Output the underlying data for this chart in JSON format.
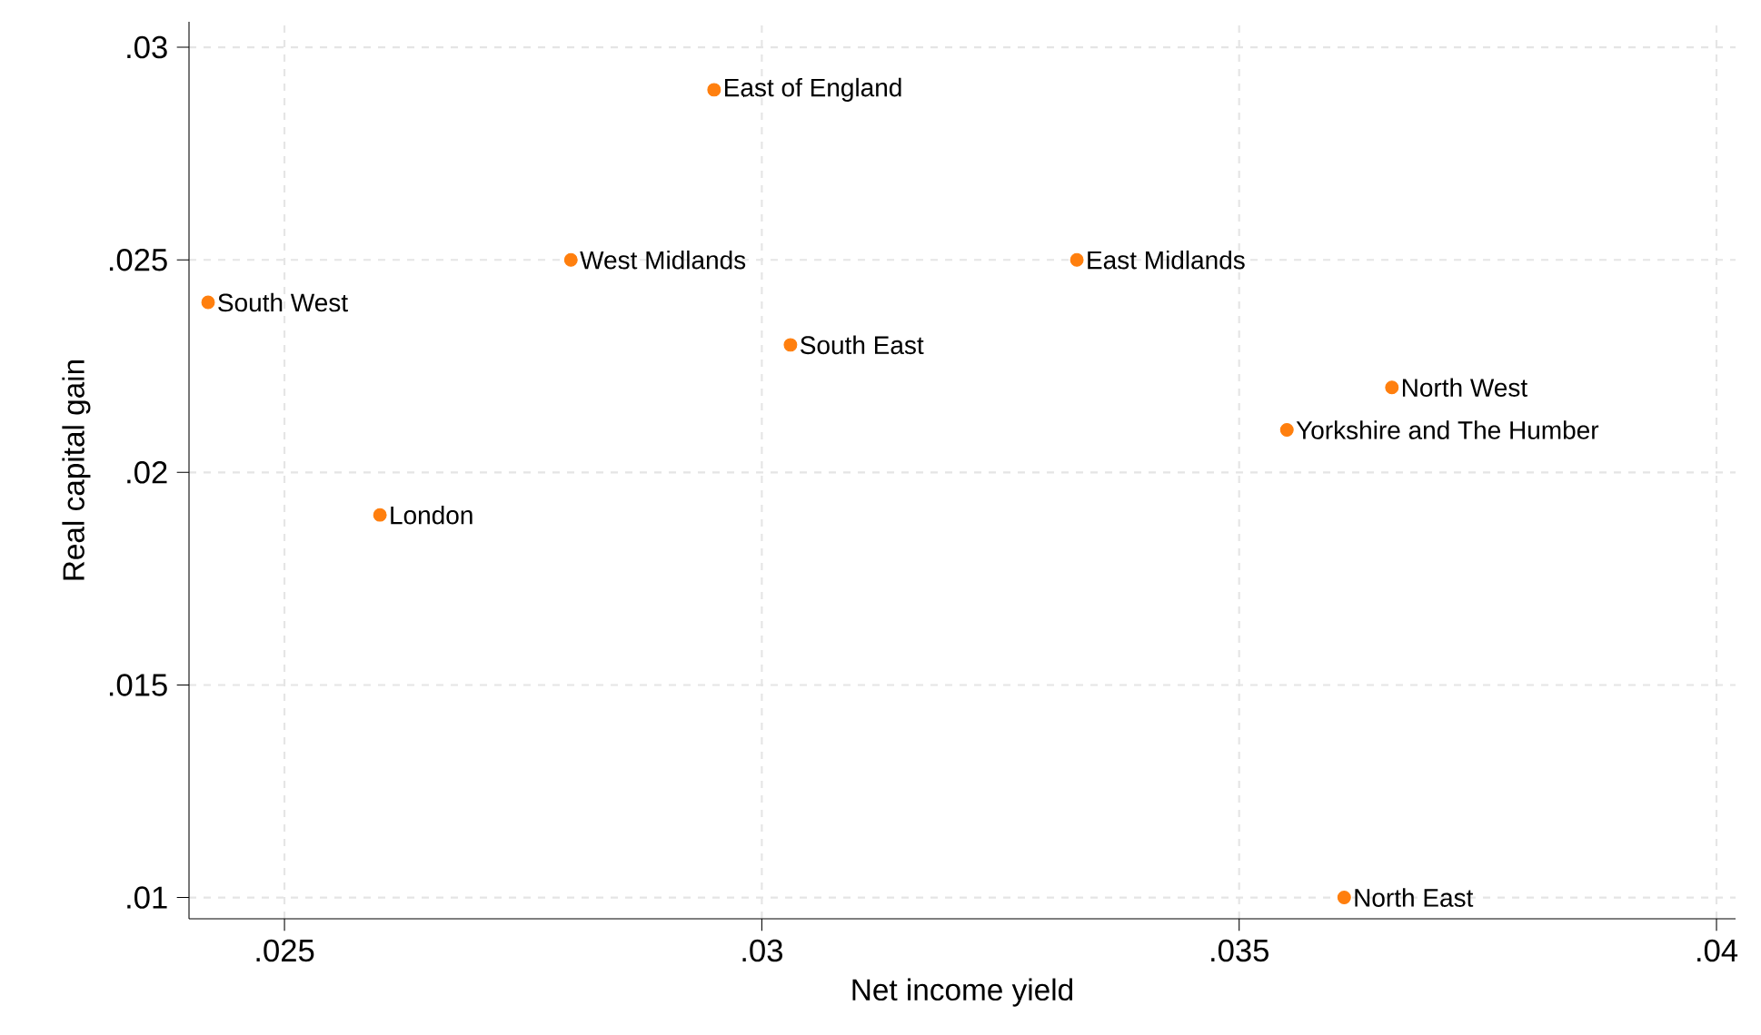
{
  "chart_data": {
    "type": "scatter",
    "xlabel": "Net income yield",
    "ylabel": "Real capital gain",
    "x": [
      0.0295,
      0.028,
      0.0242,
      0.0303,
      0.0333,
      0.0366,
      0.0355,
      0.026,
      0.0361
    ],
    "values": [
      0.029,
      0.025,
      0.024,
      0.023,
      0.025,
      0.022,
      0.021,
      0.019,
      0.01
    ],
    "color": "#ff7f0e",
    "marker": "circle",
    "grid": true,
    "xlim": [
      0.024,
      0.0402
    ],
    "ylim": [
      0.0095,
      0.0306
    ],
    "xticks": [
      {
        "value": 0.025,
        "label": ".025"
      },
      {
        "value": 0.03,
        "label": ".03"
      },
      {
        "value": 0.035,
        "label": ".035"
      },
      {
        "value": 0.04,
        "label": ".04"
      }
    ],
    "yticks": [
      {
        "value": 0.01,
        "label": ".01"
      },
      {
        "value": 0.015,
        "label": ".015"
      },
      {
        "value": 0.02,
        "label": ".02"
      },
      {
        "value": 0.025,
        "label": ".025"
      },
      {
        "value": 0.03,
        "label": ".03"
      }
    ],
    "annotations": [
      {
        "text": "East of England",
        "x": 0.0295,
        "y": 0.029
      },
      {
        "text": "West Midlands",
        "x": 0.028,
        "y": 0.025
      },
      {
        "text": "South West",
        "x": 0.0242,
        "y": 0.024
      },
      {
        "text": "South East",
        "x": 0.0303,
        "y": 0.023
      },
      {
        "text": "East Midlands",
        "x": 0.0333,
        "y": 0.025
      },
      {
        "text": "North West",
        "x": 0.0366,
        "y": 0.022
      },
      {
        "text": "Yorkshire and The Humber",
        "x": 0.0355,
        "y": 0.021
      },
      {
        "text": "London",
        "x": 0.026,
        "y": 0.019
      },
      {
        "text": "North East",
        "x": 0.0361,
        "y": 0.01
      }
    ]
  }
}
